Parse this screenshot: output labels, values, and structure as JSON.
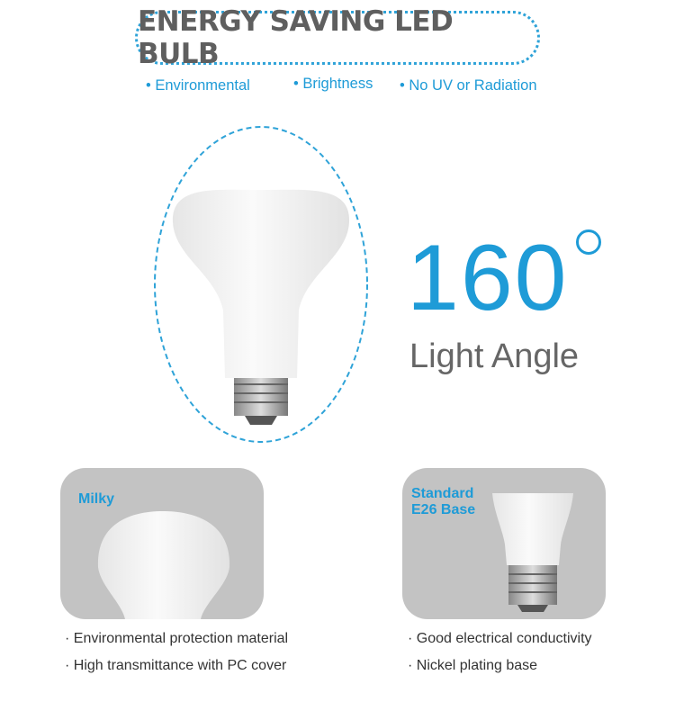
{
  "title": "ENERGY SAVING LED BULB",
  "features": [
    "• Environmental",
    "• Brightness",
    "• No UV or Radiation"
  ],
  "angle": {
    "value": "160",
    "label": "Light Angle"
  },
  "panels": [
    {
      "label": "Milky",
      "lines": [
        "· Environmental protection material",
        "· High transmittance with PC cover"
      ]
    },
    {
      "label_line1": "Standard",
      "label_line2": "E26 Base",
      "lines": [
        "· Good electrical conductivity",
        "· Nickel plating base"
      ]
    }
  ],
  "colors": {
    "accent": "#1e9bd7",
    "title": "#5f5f5f",
    "panel": "#c3c3c3"
  }
}
